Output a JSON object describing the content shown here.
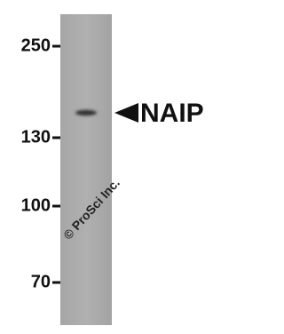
{
  "markers": [
    "250",
    "130",
    "100",
    "70"
  ],
  "band_label": "NAIP",
  "watermark": "© ProSci Inc."
}
